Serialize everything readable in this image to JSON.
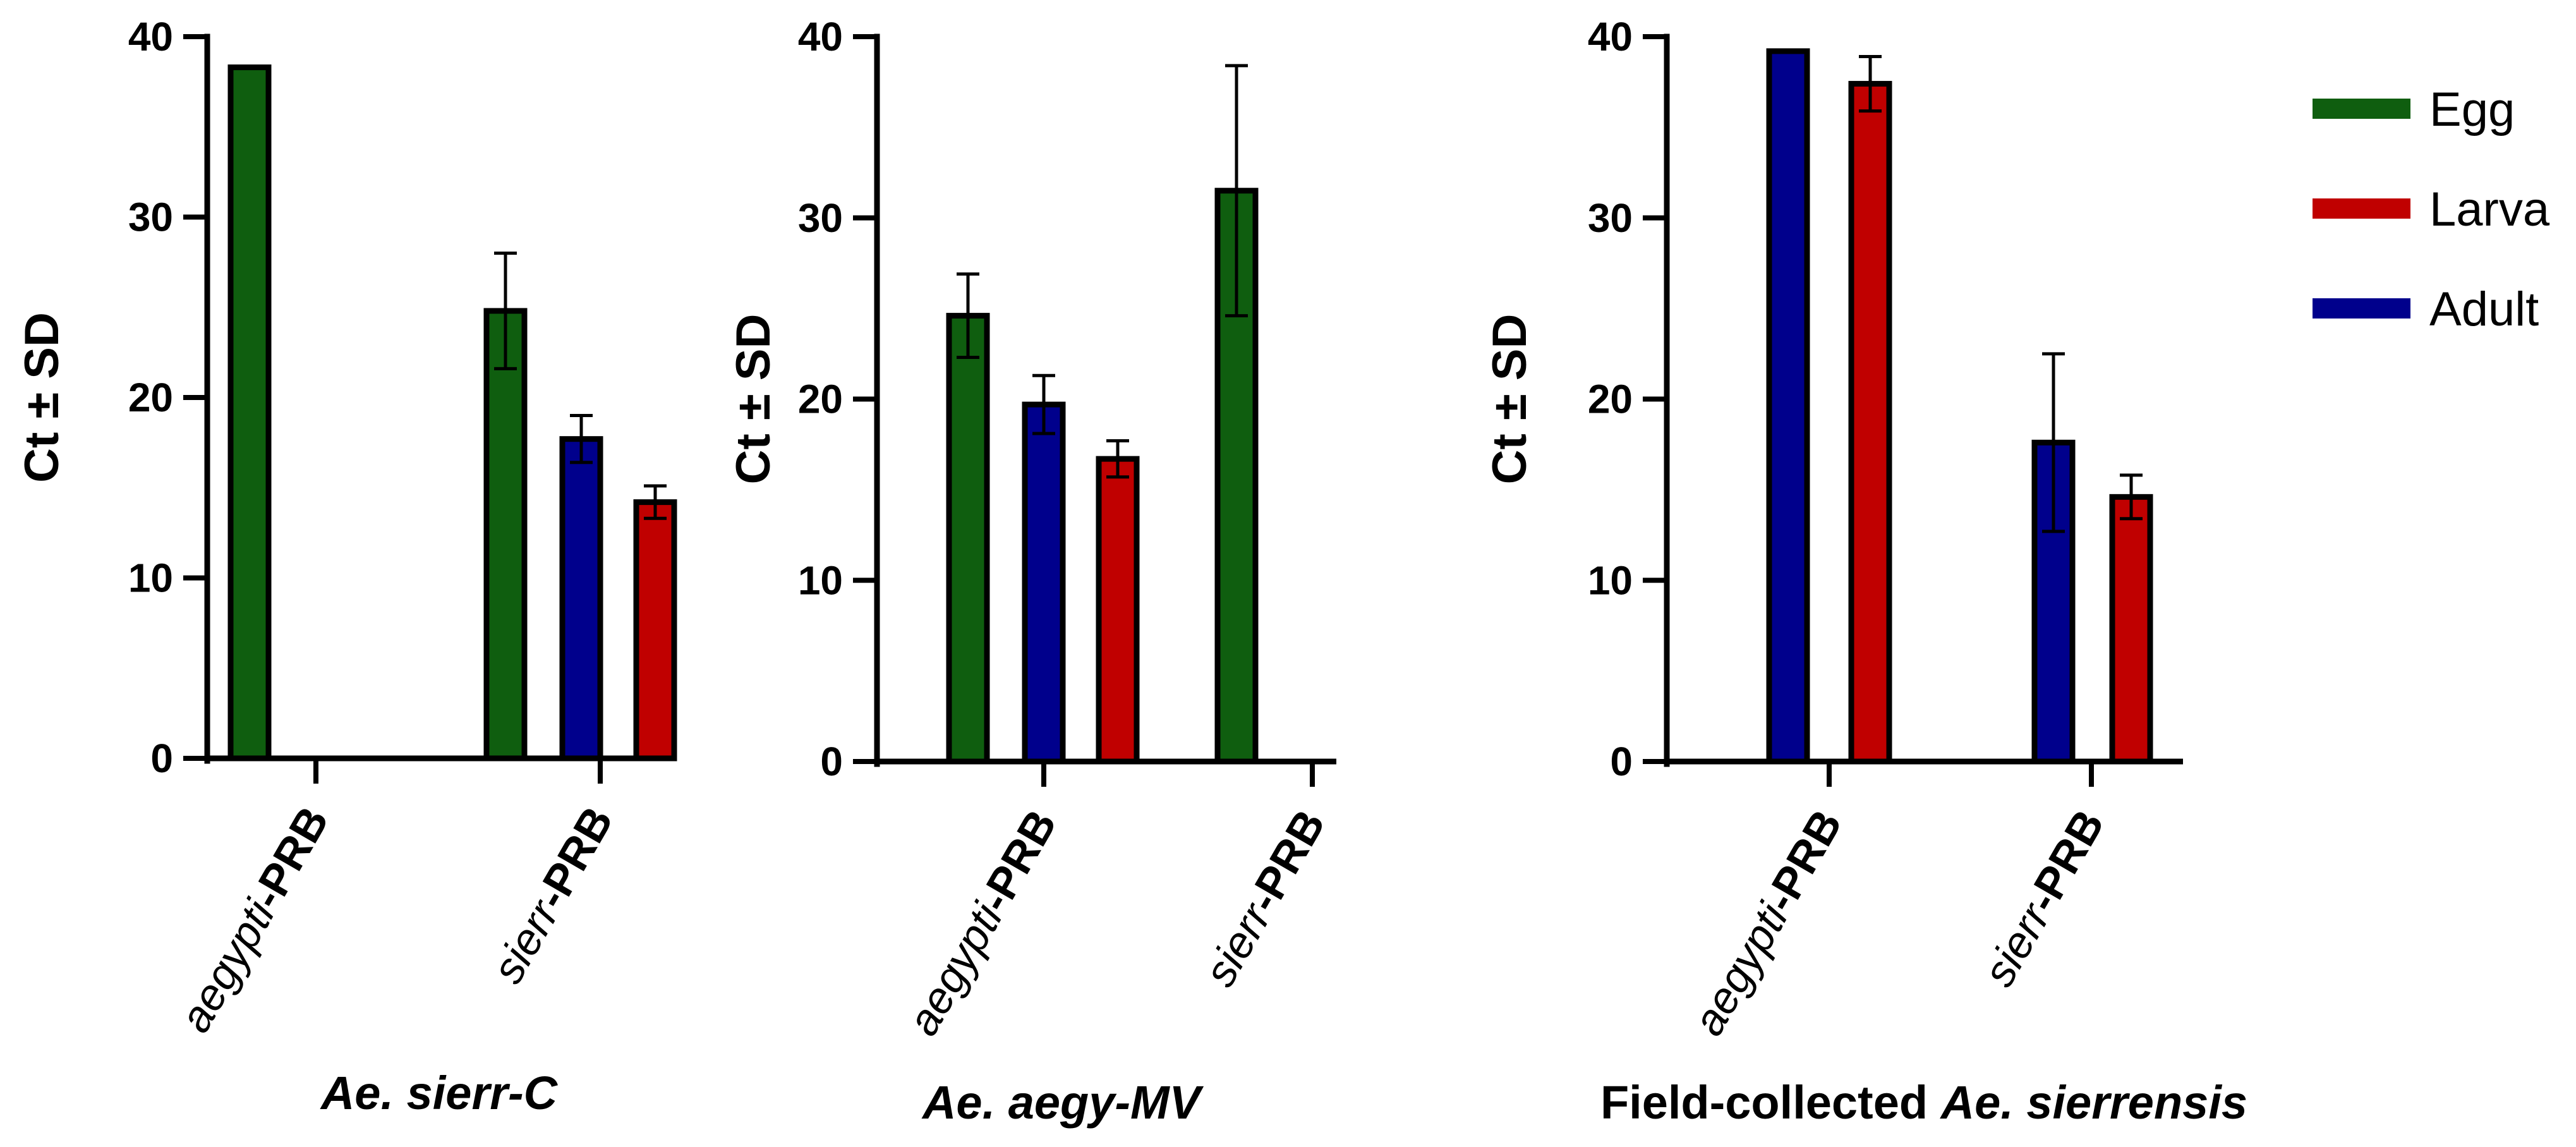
{
  "chart_data": [
    {
      "type": "bar",
      "title_parts": [
        {
          "text": "Ae. sierr-C",
          "italic": true
        }
      ],
      "ylabel": "Ct ± SD",
      "ylim": [
        0,
        40
      ],
      "yticks": [
        "0",
        "10",
        "20",
        "30",
        "40"
      ],
      "categories": [
        {
          "parts": [
            {
              "text": "aegypti",
              "italic": true
            },
            {
              "text": "-PRB",
              "bold": true
            }
          ]
        },
        {
          "parts": [
            {
              "text": "sierr",
              "italic": true
            },
            {
              "text": "-PRB",
              "bold": true
            }
          ]
        }
      ],
      "bar_order": [
        [
          "Egg"
        ],
        [
          "Egg",
          "Adult",
          "Larva"
        ]
      ],
      "series": [
        {
          "name": "Egg",
          "values": [
            38.3,
            24.8
          ],
          "sd": [
            0,
            3.2
          ]
        },
        {
          "name": "Larva",
          "values": [
            null,
            14.2
          ],
          "sd": [
            null,
            0.9
          ]
        },
        {
          "name": "Adult",
          "values": [
            null,
            17.7
          ],
          "sd": [
            null,
            1.3
          ]
        }
      ]
    },
    {
      "type": "bar",
      "title_parts": [
        {
          "text": "Ae. aegy-MV",
          "italic": true
        }
      ],
      "ylabel": "Ct ± SD",
      "ylim": [
        0,
        40
      ],
      "yticks": [
        "0",
        "10",
        "20",
        "30",
        "40"
      ],
      "categories": [
        {
          "parts": [
            {
              "text": "aegypti",
              "italic": true
            },
            {
              "text": "-PRB",
              "bold": true
            }
          ]
        },
        {
          "parts": [
            {
              "text": "sierr",
              "italic": true
            },
            {
              "text": "-PRB",
              "bold": true
            }
          ]
        }
      ],
      "bar_order": [
        [
          "Egg",
          "Adult",
          "Larva"
        ],
        [
          "Egg"
        ]
      ],
      "series": [
        {
          "name": "Egg",
          "values": [
            24.6,
            31.5
          ],
          "sd": [
            2.3,
            6.9
          ]
        },
        {
          "name": "Larva",
          "values": [
            16.7,
            null
          ],
          "sd": [
            1.0,
            null
          ]
        },
        {
          "name": "Adult",
          "values": [
            19.7,
            null
          ],
          "sd": [
            1.6,
            null
          ]
        }
      ]
    },
    {
      "type": "bar",
      "title_parts": [
        {
          "text": "Field-collected ",
          "italic": false
        },
        {
          "text": "Ae. sierrensis",
          "italic": true
        }
      ],
      "ylabel": "Ct ± SD",
      "ylim": [
        0,
        40
      ],
      "yticks": [
        "0",
        "10",
        "20",
        "30",
        "40"
      ],
      "categories": [
        {
          "parts": [
            {
              "text": "aegypti",
              "italic": true
            },
            {
              "text": "-PRB",
              "bold": true
            }
          ]
        },
        {
          "parts": [
            {
              "text": "sierr",
              "italic": true
            },
            {
              "text": "-PRB",
              "bold": true
            }
          ]
        }
      ],
      "bar_order": [
        [
          "Adult",
          "Larva"
        ],
        [
          "Adult",
          "Larva"
        ]
      ],
      "series": [
        {
          "name": "Egg",
          "values": [
            null,
            null
          ],
          "sd": [
            null,
            null
          ]
        },
        {
          "name": "Larva",
          "values": [
            37.4,
            14.6
          ],
          "sd": [
            1.5,
            1.2
          ]
        },
        {
          "name": "Adult",
          "values": [
            39.2,
            17.6
          ],
          "sd": [
            0,
            4.9
          ]
        }
      ]
    }
  ],
  "legend": [
    {
      "name": "Egg",
      "color": "#0f5e0f"
    },
    {
      "name": "Larva",
      "color": "#c00000"
    },
    {
      "name": "Adult",
      "color": "#00008c"
    }
  ],
  "colors": {
    "Egg": "#0f5e0f",
    "Larva": "#c00000",
    "Adult": "#00008c",
    "axis": "#000000"
  }
}
